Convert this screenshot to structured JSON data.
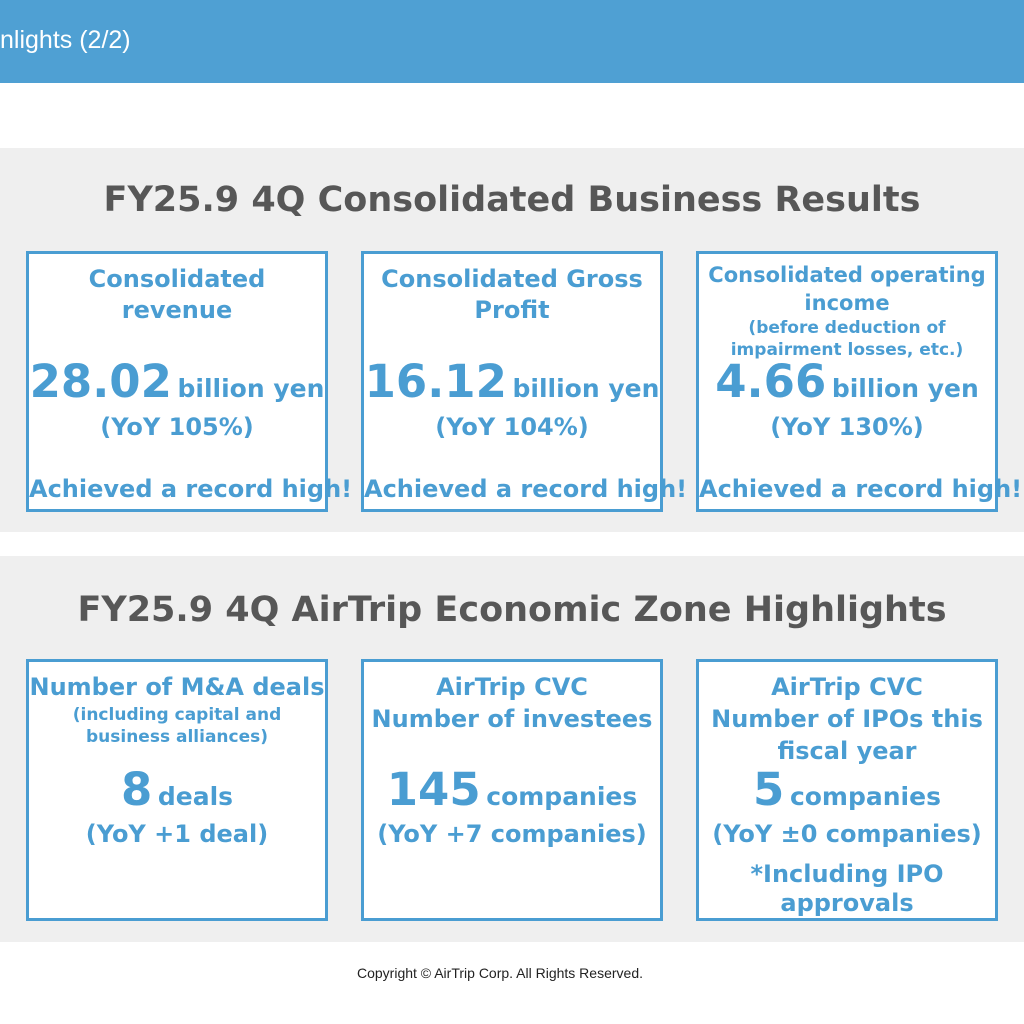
{
  "header": {
    "title": "nlights (2/2)"
  },
  "results": {
    "title": "FY25.9 4Q Consolidated Business Results",
    "cards": [
      {
        "label_1": "Consolidated",
        "label_2": "revenue",
        "value": "28.02",
        "unit": "billion yen",
        "yoy": "(YoY 105%)",
        "note": "Achieved a record high!"
      },
      {
        "label_1": "Consolidated Gross",
        "label_2": "Profit",
        "value": "16.12",
        "unit": "billion yen",
        "yoy": "(YoY 104%)",
        "note": "Achieved a record high!"
      },
      {
        "label_1": "Consolidated operating",
        "label_2": "income",
        "sub_1": "(before deduction of",
        "sub_2": "impairment losses, etc.)",
        "value": "4.66",
        "unit": "billion yen",
        "yoy": "(YoY 130%)",
        "note": "Achieved a record high!"
      }
    ]
  },
  "highlights": {
    "title": "FY25.9 4Q AirTrip Economic Zone Highlights",
    "cards": [
      {
        "label_1": "Number of M&A deals",
        "sub_1": "(including capital and",
        "sub_2": "business alliances)",
        "value": "8",
        "unit": "deals",
        "yoy": "(YoY +1 deal)"
      },
      {
        "label_1": "AirTrip CVC",
        "label_2": "Number of investees",
        "value": "145",
        "unit": "companies",
        "yoy": "(YoY +7 companies)"
      },
      {
        "label_1": "AirTrip CVC",
        "label_2": "Number of IPOs this",
        "label_3": "fiscal year",
        "value": "5",
        "unit": "companies",
        "yoy": "(YoY ±0 companies)",
        "note_1": "*Including IPO",
        "note_2": "approvals"
      }
    ]
  },
  "footer": {
    "copyright": "Copyright © AirTrip Corp. All Rights Reserved."
  },
  "colors": {
    "header": "#4fa0d3",
    "accent": "#4a9dd2",
    "panel": "#efefef",
    "title_text": "#575757"
  }
}
